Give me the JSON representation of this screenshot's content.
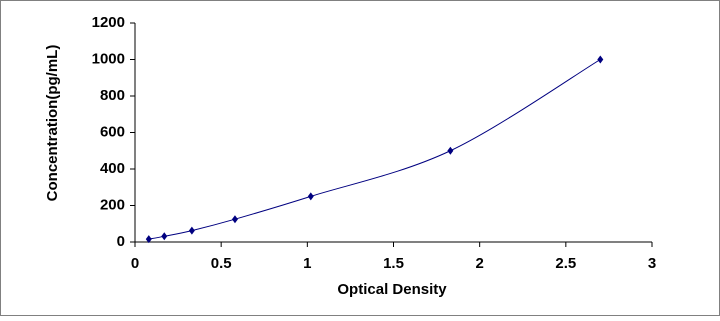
{
  "chart_data": {
    "type": "scatter",
    "x_label": "Optical Density",
    "y_label": "Concentration(pg/mL)",
    "series": [
      {
        "color": "#000080",
        "x": [
          0.08,
          0.17,
          0.33,
          0.58,
          1.02,
          1.83,
          2.7
        ],
        "values": [
          15.6,
          31.2,
          62.5,
          125,
          250,
          500,
          1000
        ]
      }
    ],
    "xlim": [
      0,
      3
    ],
    "xticks": [
      0,
      0.5,
      1,
      1.5,
      2,
      2.5,
      3
    ],
    "ylim": [
      0,
      1200
    ],
    "yticks": [
      0,
      200,
      400,
      600,
      800,
      1000,
      1200
    ],
    "grid": false,
    "smooth": true
  }
}
